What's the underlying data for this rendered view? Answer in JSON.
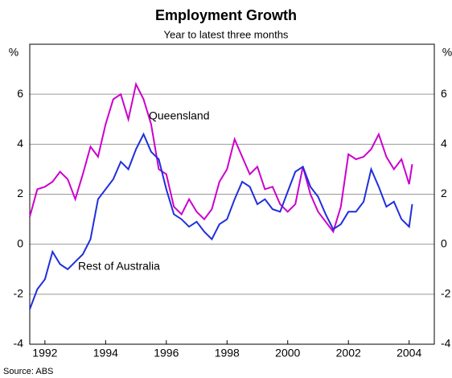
{
  "chart_data": {
    "type": "line",
    "title": "Employment Growth",
    "subtitle": "Year to latest three months",
    "y_unit": "%",
    "source": "Source:   ABS",
    "x": [
      1991.5,
      1991.75,
      1992,
      1992.25,
      1992.5,
      1992.75,
      1993,
      1993.25,
      1993.5,
      1993.75,
      1994,
      1994.25,
      1994.5,
      1994.75,
      1995,
      1995.25,
      1995.5,
      1995.75,
      1996,
      1996.25,
      1996.5,
      1996.75,
      1997,
      1997.25,
      1997.5,
      1997.75,
      1998,
      1998.25,
      1998.5,
      1998.75,
      1999,
      1999.25,
      1999.5,
      1999.75,
      2000,
      2000.25,
      2000.5,
      2000.75,
      2001,
      2001.25,
      2001.5,
      2001.75,
      2002,
      2002.25,
      2002.5,
      2002.75,
      2003,
      2003.25,
      2003.5,
      2003.75,
      2004,
      2004.1
    ],
    "series": [
      {
        "name": "Queensland",
        "color": "#cc00cc",
        "values": [
          1.1,
          2.2,
          2.3,
          2.5,
          2.9,
          2.6,
          1.8,
          2.8,
          3.9,
          3.5,
          4.8,
          5.8,
          6.0,
          5.0,
          6.4,
          5.8,
          4.8,
          3.0,
          2.8,
          1.5,
          1.2,
          1.8,
          1.3,
          1.0,
          1.4,
          2.5,
          3.0,
          4.2,
          3.5,
          2.8,
          3.1,
          2.2,
          2.3,
          1.6,
          1.3,
          1.6,
          3.1,
          2.0,
          1.3,
          0.9,
          0.5,
          1.5,
          3.6,
          3.4,
          3.5,
          3.8,
          4.4,
          3.5,
          3.0,
          3.4,
          2.4,
          3.2
        ]
      },
      {
        "name": "Rest of Australia",
        "color": "#1f2fdc",
        "values": [
          -2.6,
          -1.8,
          -1.4,
          -0.3,
          -0.8,
          -1.0,
          -0.7,
          -0.4,
          0.2,
          1.8,
          2.2,
          2.6,
          3.3,
          3.0,
          3.8,
          4.4,
          3.7,
          3.4,
          2.2,
          1.2,
          1.0,
          0.7,
          0.9,
          0.5,
          0.2,
          0.8,
          1.0,
          1.8,
          2.5,
          2.3,
          1.6,
          1.8,
          1.4,
          1.3,
          2.1,
          2.9,
          3.1,
          2.3,
          1.9,
          1.2,
          0.6,
          0.8,
          1.3,
          1.3,
          1.7,
          3.0,
          2.3,
          1.5,
          1.7,
          1.0,
          0.7,
          1.6
        ]
      }
    ],
    "xlim": [
      1991.5,
      2004.83
    ],
    "xticks": [
      1992,
      1994,
      1996,
      1998,
      2000,
      2002,
      2004
    ],
    "ylim": [
      -4,
      8
    ],
    "yticks": [
      -4,
      -2,
      0,
      2,
      4,
      6
    ],
    "grid": true
  }
}
